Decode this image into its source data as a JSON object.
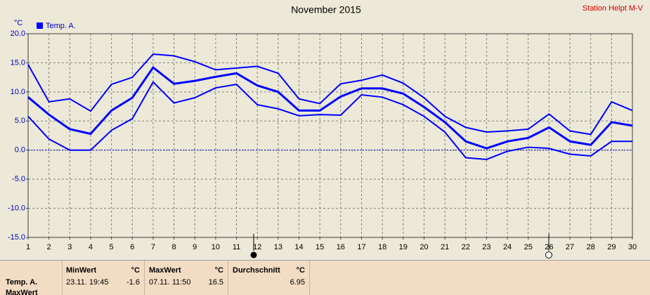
{
  "chart_data": {
    "type": "line",
    "title": "November 2015",
    "station": "Station Helpt M-V",
    "y_unit": "°C",
    "x": [
      1,
      2,
      3,
      4,
      5,
      6,
      7,
      8,
      9,
      10,
      11,
      12,
      13,
      14,
      15,
      16,
      17,
      18,
      19,
      20,
      21,
      22,
      23,
      24,
      25,
      26,
      27,
      28,
      29,
      30
    ],
    "xlim": [
      1,
      30
    ],
    "xticks": [
      1,
      2,
      3,
      4,
      5,
      6,
      7,
      8,
      9,
      10,
      11,
      12,
      13,
      14,
      15,
      16,
      17,
      18,
      19,
      20,
      21,
      22,
      23,
      24,
      25,
      26,
      27,
      28,
      29,
      30
    ],
    "ylim": [
      -15,
      20
    ],
    "yticks": [
      {
        "value": -15,
        "label": "-15.0"
      },
      {
        "value": -10,
        "label": "-10.0"
      },
      {
        "value": -5,
        "label": "-5.0"
      },
      {
        "value": 0,
        "label": "0.0"
      },
      {
        "value": 5,
        "label": "5.0"
      },
      {
        "value": 10,
        "label": "10.0"
      },
      {
        "value": 15,
        "label": "15.0"
      },
      {
        "value": 20,
        "label": "20.0"
      }
    ],
    "grid": true,
    "series": [
      {
        "name": "Temp. A.",
        "color": "#0000ff",
        "values": [
          9.1,
          6.1,
          3.6,
          2.8,
          6.8,
          9.0,
          14.2,
          11.4,
          11.9,
          12.6,
          13.2,
          11.1,
          10.0,
          6.8,
          6.8,
          9.2,
          10.6,
          10.6,
          9.7,
          7.4,
          4.8,
          1.5,
          0.3,
          1.5,
          2.1,
          3.9,
          1.5,
          0.9,
          4.8,
          4.2
        ],
        "max": [
          14.7,
          8.3,
          8.8,
          6.7,
          11.3,
          12.5,
          16.5,
          16.2,
          15.2,
          13.8,
          14.1,
          14.4,
          13.2,
          8.8,
          8.0,
          11.4,
          12.0,
          12.9,
          11.5,
          9.0,
          5.8,
          3.9,
          3.1,
          3.3,
          3.6,
          6.2,
          3.3,
          2.7,
          8.3,
          6.8
        ],
        "min": [
          5.8,
          1.9,
          0.0,
          0.0,
          3.4,
          5.4,
          11.7,
          8.1,
          9.0,
          10.7,
          11.3,
          7.8,
          7.1,
          5.9,
          6.1,
          6.0,
          9.5,
          9.1,
          7.8,
          5.8,
          3.1,
          -1.3,
          -1.6,
          -0.2,
          0.5,
          0.3,
          -0.7,
          -1.0,
          1.5,
          1.5
        ]
      }
    ]
  },
  "stats": {
    "rows": [
      "Temp. A.",
      "MaxWert"
    ],
    "columns": [
      {
        "header": "MinWert",
        "unit": "°C",
        "time": "23.11.  19:45",
        "value": "-1.6"
      },
      {
        "header": "MaxWert",
        "unit": "°C",
        "time": "07.11.  11:50",
        "value": "16.5"
      },
      {
        "header": "Durchschnitt",
        "unit": "°C",
        "value": "6.95"
      }
    ]
  }
}
